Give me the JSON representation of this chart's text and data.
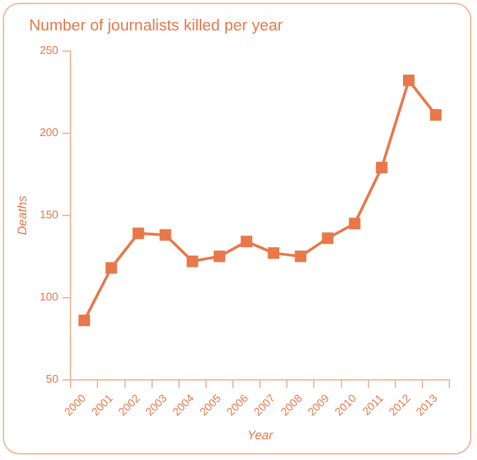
{
  "chart_data": {
    "type": "line",
    "title": "Number of journalists killed per year",
    "xlabel": "Year",
    "ylabel": "Deaths",
    "categories": [
      "2000",
      "2001",
      "2002",
      "2003",
      "2004",
      "2005",
      "2006",
      "2007",
      "2008",
      "2009",
      "2010",
      "2011",
      "2012",
      "2013"
    ],
    "series": [
      {
        "color": "#e8784a",
        "values": [
          86,
          118,
          139,
          138,
          122,
          125,
          134,
          127,
          125,
          136,
          145,
          179,
          232,
          211
        ]
      }
    ],
    "ylim": [
      50,
      250
    ],
    "yticks": [
      50,
      100,
      150,
      200,
      250
    ],
    "grid": false,
    "legend": false,
    "marker": "square",
    "line_style": "solid"
  }
}
